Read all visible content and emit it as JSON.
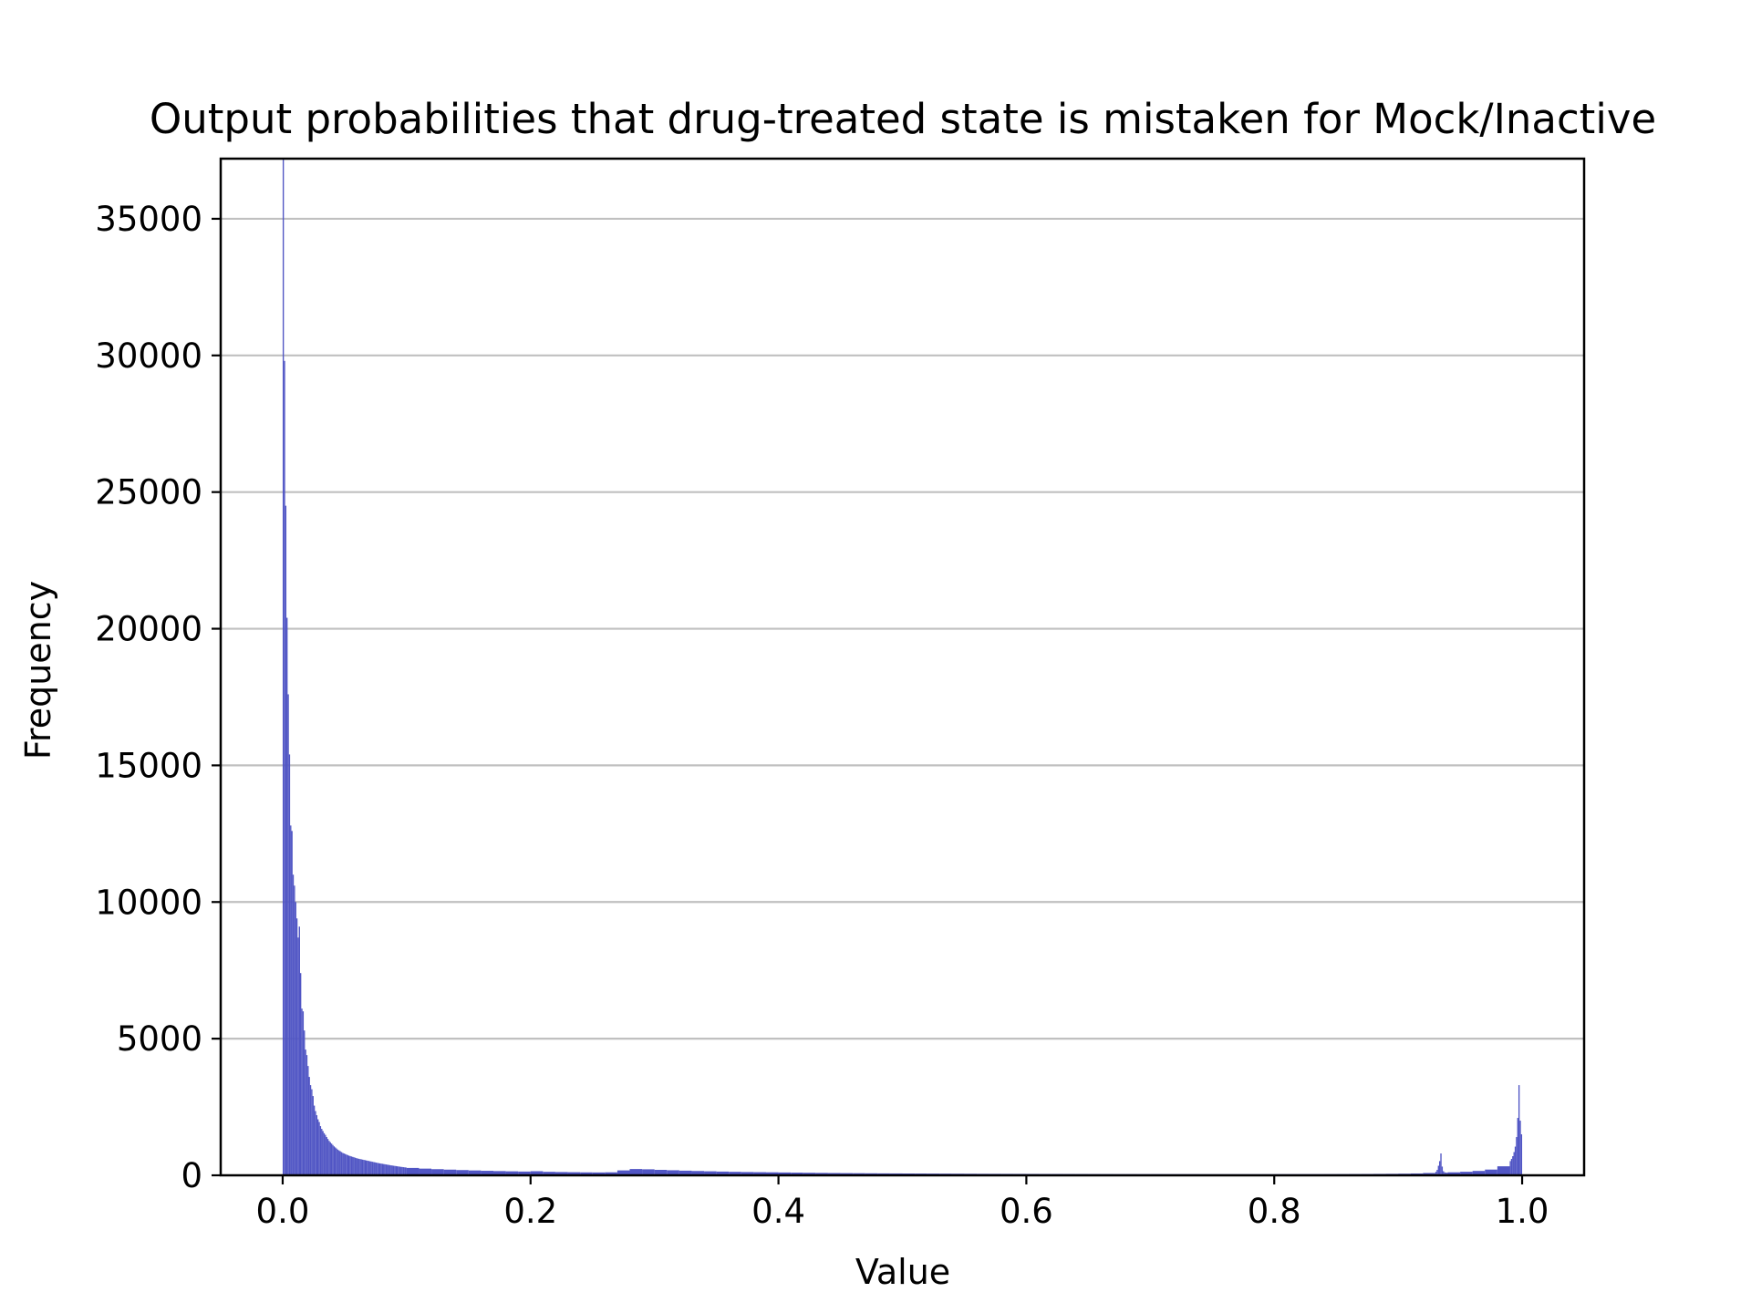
{
  "chart_data": {
    "type": "bar",
    "title": "Output probabilities that drug-treated state is mistaken for Mock/Inactive",
    "xlabel": "Value",
    "ylabel": "Frequency",
    "xlim": [
      -0.05,
      1.05
    ],
    "ylim": [
      0,
      37200
    ],
    "xticks": [
      0.0,
      0.2,
      0.4,
      0.6,
      0.8,
      1.0
    ],
    "xtick_labels": [
      "0.0",
      "0.2",
      "0.4",
      "0.6",
      "0.8",
      "1.0"
    ],
    "yticks": [
      0,
      5000,
      10000,
      15000,
      20000,
      25000,
      30000,
      35000
    ],
    "ytick_labels": [
      "0",
      "5000",
      "10000",
      "15000",
      "20000",
      "25000",
      "30000",
      "35000"
    ],
    "grid": "y",
    "bar_color": "#5055c4",
    "bin_width": 0.001,
    "bins": [
      {
        "x": 0.0005,
        "y": 37200
      },
      {
        "x": 0.0015,
        "y": 29800
      },
      {
        "x": 0.0025,
        "y": 24500
      },
      {
        "x": 0.0035,
        "y": 20400
      },
      {
        "x": 0.0045,
        "y": 17600
      },
      {
        "x": 0.0055,
        "y": 15400
      },
      {
        "x": 0.0065,
        "y": 12800
      },
      {
        "x": 0.0075,
        "y": 12600
      },
      {
        "x": 0.0085,
        "y": 11000
      },
      {
        "x": 0.0095,
        "y": 10600
      },
      {
        "x": 0.0105,
        "y": 10000
      },
      {
        "x": 0.0115,
        "y": 9400
      },
      {
        "x": 0.0125,
        "y": 8700
      },
      {
        "x": 0.0135,
        "y": 9100
      },
      {
        "x": 0.0145,
        "y": 7400
      },
      {
        "x": 0.0155,
        "y": 6100
      },
      {
        "x": 0.0165,
        "y": 6000
      },
      {
        "x": 0.0175,
        "y": 5300
      },
      {
        "x": 0.0185,
        "y": 4600
      },
      {
        "x": 0.0195,
        "y": 4400
      },
      {
        "x": 0.0205,
        "y": 4000
      },
      {
        "x": 0.0215,
        "y": 3600
      },
      {
        "x": 0.0225,
        "y": 3300
      },
      {
        "x": 0.0235,
        "y": 3150
      },
      {
        "x": 0.0245,
        "y": 2900
      },
      {
        "x": 0.0255,
        "y": 2550
      },
      {
        "x": 0.0265,
        "y": 2350
      },
      {
        "x": 0.0275,
        "y": 2200
      },
      {
        "x": 0.0285,
        "y": 2050
      },
      {
        "x": 0.0295,
        "y": 1950
      },
      {
        "x": 0.0305,
        "y": 1800
      },
      {
        "x": 0.0315,
        "y": 1700
      },
      {
        "x": 0.0325,
        "y": 1620
      },
      {
        "x": 0.0335,
        "y": 1540
      },
      {
        "x": 0.0345,
        "y": 1480
      },
      {
        "x": 0.0355,
        "y": 1400
      },
      {
        "x": 0.0365,
        "y": 1330
      },
      {
        "x": 0.0375,
        "y": 1260
      },
      {
        "x": 0.0385,
        "y": 1210
      },
      {
        "x": 0.0395,
        "y": 1160
      },
      {
        "x": 0.0405,
        "y": 1110
      },
      {
        "x": 0.0415,
        "y": 1060
      },
      {
        "x": 0.0425,
        "y": 1020
      },
      {
        "x": 0.0435,
        "y": 980
      },
      {
        "x": 0.0445,
        "y": 940
      },
      {
        "x": 0.0455,
        "y": 910
      },
      {
        "x": 0.0465,
        "y": 880
      },
      {
        "x": 0.0475,
        "y": 850
      },
      {
        "x": 0.0485,
        "y": 820
      },
      {
        "x": 0.0495,
        "y": 800
      },
      {
        "x": 0.0505,
        "y": 780
      },
      {
        "x": 0.0515,
        "y": 760
      },
      {
        "x": 0.0525,
        "y": 740
      },
      {
        "x": 0.0535,
        "y": 720
      },
      {
        "x": 0.0545,
        "y": 705
      },
      {
        "x": 0.0555,
        "y": 690
      },
      {
        "x": 0.0565,
        "y": 675
      },
      {
        "x": 0.0575,
        "y": 660
      },
      {
        "x": 0.0585,
        "y": 645
      },
      {
        "x": 0.0595,
        "y": 630
      },
      {
        "x": 0.0605,
        "y": 615
      },
      {
        "x": 0.0615,
        "y": 605
      },
      {
        "x": 0.0625,
        "y": 595
      },
      {
        "x": 0.0635,
        "y": 585
      },
      {
        "x": 0.0645,
        "y": 575
      },
      {
        "x": 0.0655,
        "y": 565
      },
      {
        "x": 0.0665,
        "y": 555
      },
      {
        "x": 0.0675,
        "y": 545
      },
      {
        "x": 0.0685,
        "y": 535
      },
      {
        "x": 0.0695,
        "y": 525
      },
      {
        "x": 0.0705,
        "y": 515
      },
      {
        "x": 0.0715,
        "y": 505
      },
      {
        "x": 0.0725,
        "y": 495
      },
      {
        "x": 0.0735,
        "y": 485
      },
      {
        "x": 0.0745,
        "y": 475
      },
      {
        "x": 0.0755,
        "y": 465
      },
      {
        "x": 0.0765,
        "y": 455
      },
      {
        "x": 0.0775,
        "y": 445
      },
      {
        "x": 0.0785,
        "y": 437
      },
      {
        "x": 0.0795,
        "y": 429
      },
      {
        "x": 0.0805,
        "y": 421
      },
      {
        "x": 0.0815,
        "y": 413
      },
      {
        "x": 0.0825,
        "y": 405
      },
      {
        "x": 0.0835,
        "y": 397
      },
      {
        "x": 0.0845,
        "y": 389
      },
      {
        "x": 0.0855,
        "y": 381
      },
      {
        "x": 0.0865,
        "y": 373
      },
      {
        "x": 0.0875,
        "y": 365
      },
      {
        "x": 0.0885,
        "y": 358
      },
      {
        "x": 0.0895,
        "y": 351
      },
      {
        "x": 0.0905,
        "y": 344
      },
      {
        "x": 0.0915,
        "y": 337
      },
      {
        "x": 0.0925,
        "y": 330
      },
      {
        "x": 0.0935,
        "y": 323
      },
      {
        "x": 0.0945,
        "y": 316
      },
      {
        "x": 0.0955,
        "y": 310
      },
      {
        "x": 0.0965,
        "y": 304
      },
      {
        "x": 0.0975,
        "y": 298
      },
      {
        "x": 0.0985,
        "y": 292
      },
      {
        "x": 0.0995,
        "y": 286
      },
      {
        "x": 0.105,
        "y": 270
      },
      {
        "x": 0.115,
        "y": 245
      },
      {
        "x": 0.125,
        "y": 225
      },
      {
        "x": 0.135,
        "y": 208
      },
      {
        "x": 0.145,
        "y": 192
      },
      {
        "x": 0.155,
        "y": 178
      },
      {
        "x": 0.165,
        "y": 165
      },
      {
        "x": 0.175,
        "y": 155
      },
      {
        "x": 0.185,
        "y": 146
      },
      {
        "x": 0.195,
        "y": 138
      },
      {
        "x": 0.205,
        "y": 150
      },
      {
        "x": 0.215,
        "y": 128
      },
      {
        "x": 0.225,
        "y": 120
      },
      {
        "x": 0.235,
        "y": 114
      },
      {
        "x": 0.245,
        "y": 108
      },
      {
        "x": 0.255,
        "y": 105
      },
      {
        "x": 0.265,
        "y": 110
      },
      {
        "x": 0.275,
        "y": 180
      },
      {
        "x": 0.285,
        "y": 230
      },
      {
        "x": 0.295,
        "y": 220
      },
      {
        "x": 0.305,
        "y": 200
      },
      {
        "x": 0.315,
        "y": 185
      },
      {
        "x": 0.325,
        "y": 170
      },
      {
        "x": 0.335,
        "y": 158
      },
      {
        "x": 0.345,
        "y": 147
      },
      {
        "x": 0.355,
        "y": 137
      },
      {
        "x": 0.365,
        "y": 128
      },
      {
        "x": 0.375,
        "y": 120
      },
      {
        "x": 0.385,
        "y": 115
      },
      {
        "x": 0.395,
        "y": 110
      },
      {
        "x": 0.405,
        "y": 104
      },
      {
        "x": 0.415,
        "y": 98
      },
      {
        "x": 0.425,
        "y": 93
      },
      {
        "x": 0.435,
        "y": 88
      },
      {
        "x": 0.445,
        "y": 84
      },
      {
        "x": 0.455,
        "y": 80
      },
      {
        "x": 0.465,
        "y": 77
      },
      {
        "x": 0.475,
        "y": 74
      },
      {
        "x": 0.485,
        "y": 71
      },
      {
        "x": 0.495,
        "y": 69
      },
      {
        "x": 0.505,
        "y": 67
      },
      {
        "x": 0.515,
        "y": 65
      },
      {
        "x": 0.525,
        "y": 63
      },
      {
        "x": 0.535,
        "y": 61
      },
      {
        "x": 0.545,
        "y": 59
      },
      {
        "x": 0.555,
        "y": 57
      },
      {
        "x": 0.565,
        "y": 55
      },
      {
        "x": 0.575,
        "y": 54
      },
      {
        "x": 0.585,
        "y": 53
      },
      {
        "x": 0.595,
        "y": 52
      },
      {
        "x": 0.605,
        "y": 51
      },
      {
        "x": 0.615,
        "y": 50
      },
      {
        "x": 0.625,
        "y": 49
      },
      {
        "x": 0.635,
        "y": 48
      },
      {
        "x": 0.645,
        "y": 47
      },
      {
        "x": 0.655,
        "y": 46
      },
      {
        "x": 0.665,
        "y": 45
      },
      {
        "x": 0.675,
        "y": 44
      },
      {
        "x": 0.685,
        "y": 44
      },
      {
        "x": 0.695,
        "y": 43
      },
      {
        "x": 0.705,
        "y": 43
      },
      {
        "x": 0.715,
        "y": 42
      },
      {
        "x": 0.725,
        "y": 42
      },
      {
        "x": 0.735,
        "y": 42
      },
      {
        "x": 0.745,
        "y": 41
      },
      {
        "x": 0.755,
        "y": 41
      },
      {
        "x": 0.765,
        "y": 41
      },
      {
        "x": 0.775,
        "y": 41
      },
      {
        "x": 0.785,
        "y": 41
      },
      {
        "x": 0.795,
        "y": 41
      },
      {
        "x": 0.805,
        "y": 42
      },
      {
        "x": 0.815,
        "y": 42
      },
      {
        "x": 0.825,
        "y": 43
      },
      {
        "x": 0.835,
        "y": 43
      },
      {
        "x": 0.845,
        "y": 44
      },
      {
        "x": 0.855,
        "y": 45
      },
      {
        "x": 0.865,
        "y": 47
      },
      {
        "x": 0.875,
        "y": 49
      },
      {
        "x": 0.885,
        "y": 52
      },
      {
        "x": 0.895,
        "y": 55
      },
      {
        "x": 0.905,
        "y": 60
      },
      {
        "x": 0.915,
        "y": 68
      },
      {
        "x": 0.925,
        "y": 85
      },
      {
        "x": 0.9305,
        "y": 130
      },
      {
        "x": 0.9315,
        "y": 200
      },
      {
        "x": 0.9325,
        "y": 350
      },
      {
        "x": 0.9335,
        "y": 520
      },
      {
        "x": 0.9345,
        "y": 800
      },
      {
        "x": 0.9355,
        "y": 320
      },
      {
        "x": 0.9365,
        "y": 150
      },
      {
        "x": 0.9375,
        "y": 110
      },
      {
        "x": 0.9385,
        "y": 100
      },
      {
        "x": 0.9395,
        "y": 95
      },
      {
        "x": 0.945,
        "y": 110
      },
      {
        "x": 0.955,
        "y": 130
      },
      {
        "x": 0.965,
        "y": 160
      },
      {
        "x": 0.975,
        "y": 210
      },
      {
        "x": 0.985,
        "y": 330
      },
      {
        "x": 0.9905,
        "y": 520
      },
      {
        "x": 0.9915,
        "y": 600
      },
      {
        "x": 0.9925,
        "y": 700
      },
      {
        "x": 0.9935,
        "y": 850
      },
      {
        "x": 0.9945,
        "y": 1050
      },
      {
        "x": 0.9955,
        "y": 1400
      },
      {
        "x": 0.9965,
        "y": 2100
      },
      {
        "x": 0.9975,
        "y": 3300
      },
      {
        "x": 0.9985,
        "y": 2000
      },
      {
        "x": 0.9995,
        "y": 1500
      }
    ]
  }
}
